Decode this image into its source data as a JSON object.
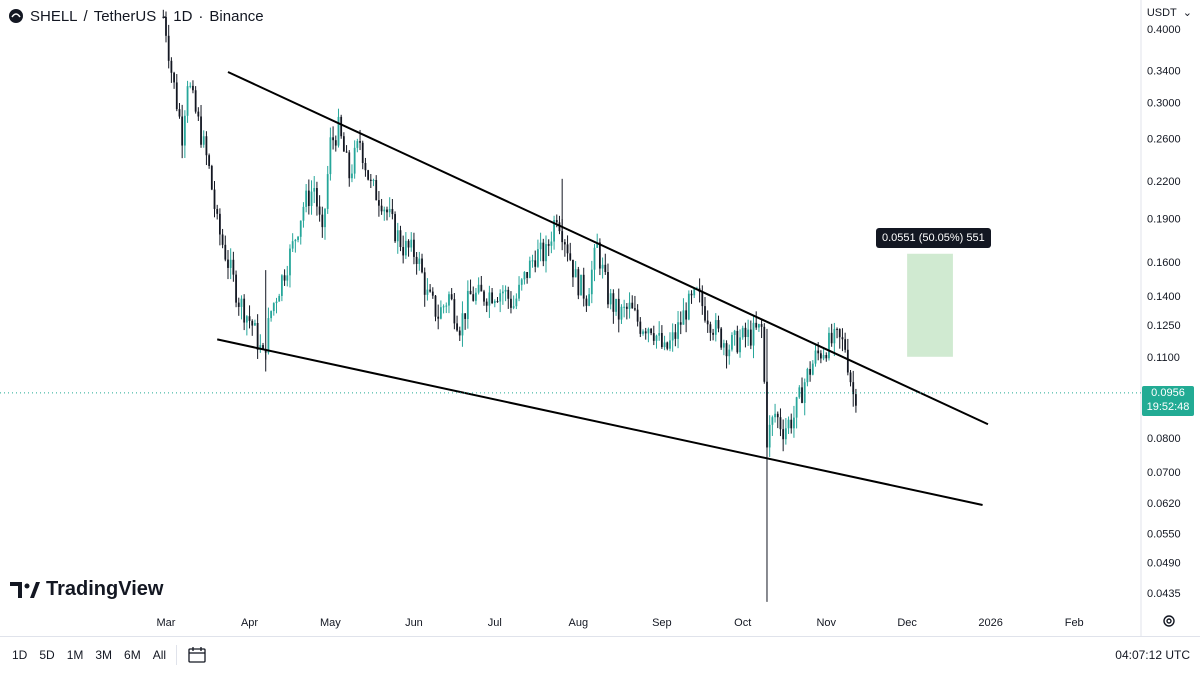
{
  "header": {
    "symbol": "SHELL",
    "pair_separator": "/",
    "quote": "TetherUS",
    "interval": "1D",
    "exchange": "Binance",
    "dot": "·"
  },
  "currency": {
    "label": "USDT",
    "chevron": "⌄"
  },
  "brand": {
    "name": "TradingView"
  },
  "last_price": {
    "value": "0.0956",
    "countdown": "19:52:48"
  },
  "measure": {
    "label": "0.0551 (50.05%) 551"
  },
  "bottom": {
    "timeframes": [
      "1D",
      "5D",
      "1M",
      "3M",
      "6M",
      "All"
    ],
    "clock": "04:07:12 UTC"
  },
  "colors": {
    "up": "#26a69a",
    "down": "#131722",
    "badge": "#22ab94",
    "measure_fill": "#c8e6c9",
    "trendline": "#000000"
  },
  "chart_data": {
    "type": "candlestick",
    "xlabels": [
      "Mar",
      "Apr",
      "May",
      "Jun",
      "Jul",
      "Aug",
      "Sep",
      "Oct",
      "Nov",
      "Dec",
      "2026",
      "Feb"
    ],
    "ylabels": [
      "0.4000",
      "0.3400",
      "0.3000",
      "0.2600",
      "0.2200",
      "0.1900",
      "0.1600",
      "0.1400",
      "0.1250",
      "0.1100",
      "0.0956",
      "0.0800",
      "0.0700",
      "0.0620",
      "0.0550",
      "0.0490",
      "0.0435"
    ],
    "yscale": "log",
    "ylim": [
      0.041,
      0.44
    ],
    "price_path": [
      [
        "2025-02-28",
        0.42
      ],
      [
        "2025-03-01",
        0.4
      ],
      [
        "2025-03-03",
        0.34
      ],
      [
        "2025-03-05",
        0.3
      ],
      [
        "2025-03-07",
        0.265
      ],
      [
        "2025-03-09",
        0.33
      ],
      [
        "2025-03-11",
        0.3
      ],
      [
        "2025-03-14",
        0.265
      ],
      [
        "2025-03-17",
        0.23
      ],
      [
        "2025-03-20",
        0.185
      ],
      [
        "2025-03-24",
        0.16
      ],
      [
        "2025-03-28",
        0.138
      ],
      [
        "2025-04-02",
        0.125
      ],
      [
        "2025-04-06",
        0.11
      ],
      [
        "2025-04-09",
        0.132
      ],
      [
        "2025-04-13",
        0.15
      ],
      [
        "2025-04-17",
        0.17
      ],
      [
        "2025-04-21",
        0.2
      ],
      [
        "2025-04-25",
        0.215
      ],
      [
        "2025-04-28",
        0.175
      ],
      [
        "2025-05-01",
        0.255
      ],
      [
        "2025-05-04",
        0.27
      ],
      [
        "2025-05-08",
        0.225
      ],
      [
        "2025-05-12",
        0.258
      ],
      [
        "2025-05-16",
        0.215
      ],
      [
        "2025-05-20",
        0.205
      ],
      [
        "2025-05-24",
        0.185
      ],
      [
        "2025-05-28",
        0.17
      ],
      [
        "2025-06-02",
        0.165
      ],
      [
        "2025-06-06",
        0.14
      ],
      [
        "2025-06-10",
        0.13
      ],
      [
        "2025-06-14",
        0.14
      ],
      [
        "2025-06-18",
        0.125
      ],
      [
        "2025-06-22",
        0.14
      ],
      [
        "2025-06-26",
        0.14
      ],
      [
        "2025-06-30",
        0.142
      ],
      [
        "2025-07-04",
        0.143
      ],
      [
        "2025-07-08",
        0.135
      ],
      [
        "2025-07-12",
        0.15
      ],
      [
        "2025-07-16",
        0.165
      ],
      [
        "2025-07-20",
        0.165
      ],
      [
        "2025-07-24",
        0.195
      ],
      [
        "2025-07-28",
        0.17
      ],
      [
        "2025-07-31",
        0.15
      ],
      [
        "2025-08-04",
        0.14
      ],
      [
        "2025-08-08",
        0.17
      ],
      [
        "2025-08-12",
        0.14
      ],
      [
        "2025-08-16",
        0.13
      ],
      [
        "2025-08-20",
        0.133
      ],
      [
        "2025-08-24",
        0.125
      ],
      [
        "2025-08-28",
        0.125
      ],
      [
        "2025-09-02",
        0.112
      ],
      [
        "2025-09-06",
        0.12
      ],
      [
        "2025-09-10",
        0.133
      ],
      [
        "2025-09-14",
        0.14
      ],
      [
        "2025-09-18",
        0.13
      ],
      [
        "2025-09-22",
        0.12
      ],
      [
        "2025-09-26",
        0.115
      ],
      [
        "2025-09-30",
        0.118
      ],
      [
        "2025-10-04",
        0.12
      ],
      [
        "2025-10-08",
        0.123
      ],
      [
        "2025-10-10",
        0.08
      ],
      [
        "2025-10-13",
        0.088
      ],
      [
        "2025-10-16",
        0.083
      ],
      [
        "2025-10-20",
        0.087
      ],
      [
        "2025-10-24",
        0.1
      ],
      [
        "2025-10-28",
        0.11
      ],
      [
        "2025-11-01",
        0.115
      ],
      [
        "2025-11-05",
        0.118
      ],
      [
        "2025-11-08",
        0.115
      ],
      [
        "2025-11-11",
        0.095
      ],
      [
        "2025-11-12",
        0.0956
      ]
    ],
    "wicks": [
      {
        "date": "2025-10-10",
        "low": 0.042,
        "high": 0.123
      },
      {
        "date": "2025-04-07",
        "low": 0.104,
        "high": 0.155
      },
      {
        "date": "2025-07-26",
        "low": 0.175,
        "high": 0.222
      }
    ],
    "upper_trendline": [
      [
        "2025-03-24",
        0.338
      ],
      [
        "2025-12-31",
        0.0845
      ]
    ],
    "lower_trendline": [
      [
        "2025-03-20",
        0.118
      ],
      [
        "2025-12-29",
        0.0615
      ]
    ],
    "measure_box": {
      "x1": "2025-12-01",
      "x2": "2025-12-18",
      "y1": 0.1102,
      "y2": 0.1653
    },
    "last_price": 0.0956,
    "grid": false
  }
}
